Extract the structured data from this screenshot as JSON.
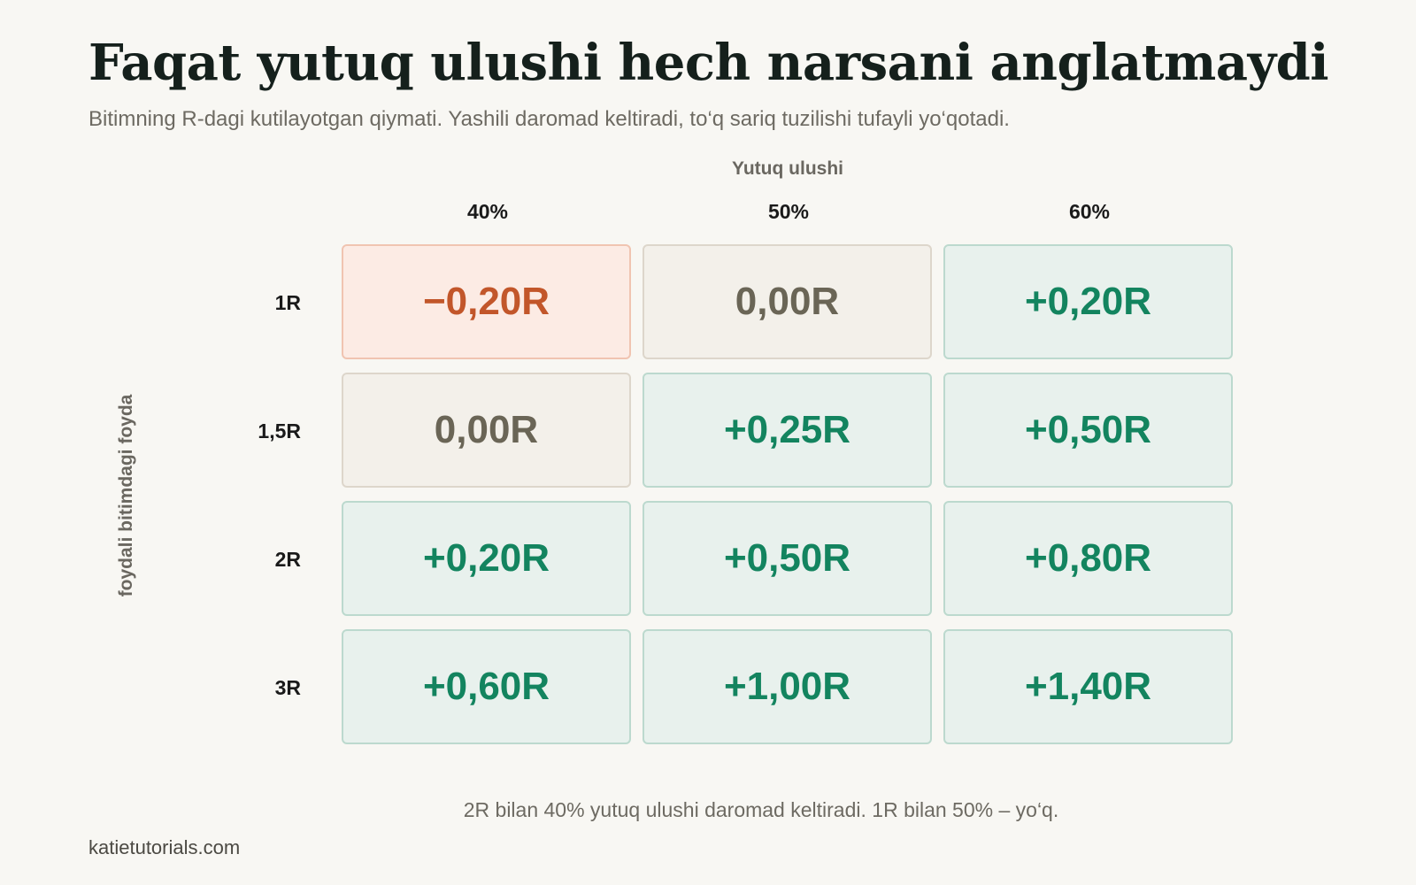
{
  "title": "Faqat yutuq ulushi hech narsani anglatmaydi",
  "subtitle": "Bitimning R-dagi kutilayotgan qiymati. Yashili daromad keltiradi, to‘q sariq tuzilishi tufayli yo‘qotadi.",
  "footnote": "2R bilan 40% yutuq ulushi daromad keltiradi. 1R bilan 50% – yo‘q.",
  "source": "katietutorials.com",
  "colors": {
    "positive": "#13845f",
    "neutral": "#6a6556",
    "negative": "#c2562a",
    "background": "#f8f7f3"
  },
  "chart_data": {
    "type": "heatmap",
    "xlabel": "Yutuq ulushi",
    "ylabel": "foydali bitimdagi foyda",
    "x_categories": [
      "40%",
      "50%",
      "60%"
    ],
    "y_categories": [
      "1R",
      "1,5R",
      "2R",
      "3R"
    ],
    "values": [
      [
        -0.2,
        0.0,
        0.2
      ],
      [
        0.0,
        0.25,
        0.5
      ],
      [
        0.2,
        0.5,
        0.8
      ],
      [
        0.6,
        1.0,
        1.4
      ]
    ],
    "labels": [
      [
        "−0,20R",
        "0,00R",
        "+0,20R"
      ],
      [
        "0,00R",
        "+0,25R",
        "+0,50R"
      ],
      [
        "+0,20R",
        "+0,50R",
        "+0,80R"
      ],
      [
        "+0,60R",
        "+1,00R",
        "+1,40R"
      ]
    ]
  }
}
